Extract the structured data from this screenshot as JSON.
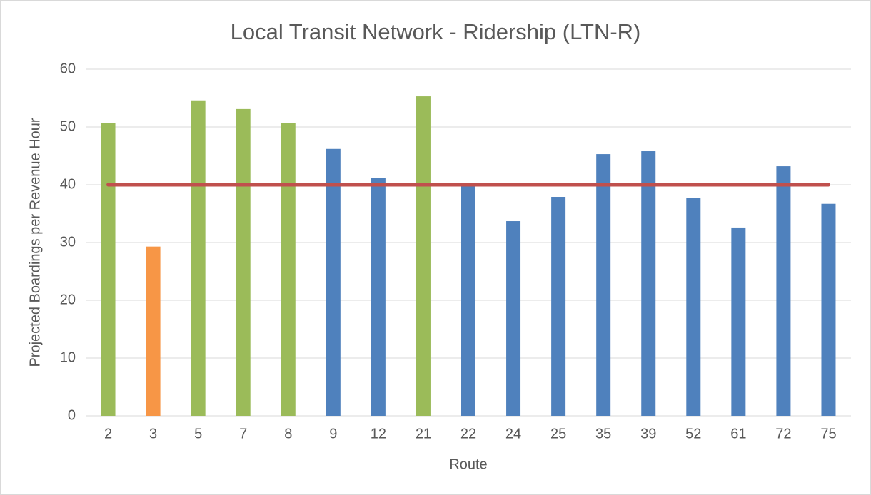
{
  "chart_data": {
    "type": "bar",
    "title": "Local Transit Network - Ridership (LTN-R)",
    "x_label": "Route",
    "y_label": "Projected Boardings per Revenue Hour",
    "categories": [
      "2",
      "3",
      "5",
      "7",
      "8",
      "9",
      "12",
      "21",
      "22",
      "24",
      "25",
      "35",
      "39",
      "52",
      "61",
      "72",
      "75"
    ],
    "values": [
      50.7,
      29.3,
      54.6,
      53.1,
      50.7,
      46.2,
      41.2,
      55.3,
      40,
      33.7,
      37.9,
      45.3,
      45.8,
      37.7,
      32.6,
      43.2,
      36.7
    ],
    "colors": [
      "#9bbb59",
      "#f79646",
      "#9bbb59",
      "#9bbb59",
      "#9bbb59",
      "#4f81bd",
      "#4f81bd",
      "#9bbb59",
      "#4f81bd",
      "#4f81bd",
      "#4f81bd",
      "#4f81bd",
      "#4f81bd",
      "#4f81bd",
      "#4f81bd",
      "#4f81bd",
      "#4f81bd"
    ],
    "target": 40,
    "target_color": "#c0504d",
    "ylim": [
      0,
      60
    ],
    "yticks": [
      0,
      10,
      20,
      30,
      40,
      50,
      60
    ],
    "grid": true
  }
}
